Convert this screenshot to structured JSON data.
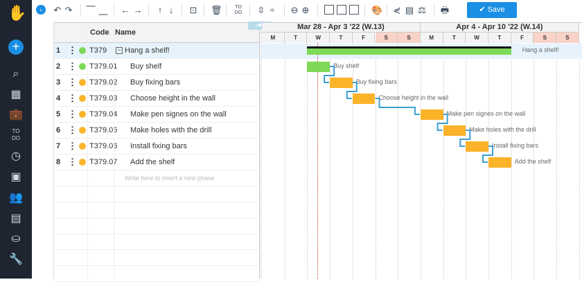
{
  "sidebar": {
    "logo": "hand-logo",
    "items": [
      "plus",
      "search",
      "dashboard",
      "briefcase",
      "todo",
      "clock",
      "calendar",
      "people",
      "document",
      "coins",
      "wrench"
    ],
    "todo_label": "TO DO"
  },
  "toolbar": {
    "save_label": "Save",
    "todo_label": "TO DO"
  },
  "grid": {
    "headers": {
      "code": "Code",
      "name": "Name"
    },
    "placeholder": "Write here to insert a new phase",
    "rows": [
      {
        "num": "1",
        "code": "T379",
        "name": "Hang a shelf!",
        "status": "#7ed957",
        "summary": true
      },
      {
        "num": "2",
        "code": "T379.01",
        "name": "Buy shelf",
        "status": "#7ed957"
      },
      {
        "num": "3",
        "code": "T379.02",
        "name": "Buy fixing bars",
        "status": "#fbb32a"
      },
      {
        "num": "4",
        "code": "T379.03",
        "name": "Choose height in the wall",
        "status": "#fbb32a"
      },
      {
        "num": "5",
        "code": "T379.04",
        "name": "Make pen signes on the wall",
        "status": "#fbb32a"
      },
      {
        "num": "6",
        "code": "T379.05",
        "name": "Make holes with the drill",
        "status": "#fbb32a"
      },
      {
        "num": "7",
        "code": "T379.06",
        "name": "Install fixing bars",
        "status": "#fbb32a"
      },
      {
        "num": "8",
        "code": "T379.07",
        "name": "Add the shelf",
        "status": "#fbb32a"
      }
    ]
  },
  "gantt": {
    "weeks": [
      "Mar 28 - Apr 3 '22 (W.13)",
      "Apr 4 - Apr 10 '22 (W.14)"
    ],
    "days": [
      "M",
      "T",
      "W",
      "T",
      "F",
      "S",
      "S",
      "M",
      "T",
      "W",
      "T",
      "F",
      "S",
      "S"
    ],
    "today": "2022-03-30",
    "tasks": [
      {
        "label": "Hang a shelf!",
        "start": "2022-03-30",
        "end": "2022-04-07",
        "color": "#7ed957"
      },
      {
        "label": "Buy shelf",
        "start": "2022-03-30",
        "end": "2022-03-30",
        "color": "#7ed957"
      },
      {
        "label": "Buy fixing bars",
        "start": "2022-03-31",
        "end": "2022-03-31",
        "color": "#fbb32a"
      },
      {
        "label": "Choose height in the wall",
        "start": "2022-04-01",
        "end": "2022-04-01",
        "color": "#fbb32a"
      },
      {
        "label": "Make pen signes on the wall",
        "start": "2022-04-04",
        "end": "2022-04-04",
        "color": "#fbb32a"
      },
      {
        "label": "Make holes with the drill",
        "start": "2022-04-05",
        "end": "2022-04-05",
        "color": "#fbb32a"
      },
      {
        "label": "Install fixing bars",
        "start": "2022-04-06",
        "end": "2022-04-06",
        "color": "#fbb32a"
      },
      {
        "label": "Add the shelf",
        "start": "2022-04-07",
        "end": "2022-04-07",
        "color": "#fbb32a"
      }
    ]
  }
}
